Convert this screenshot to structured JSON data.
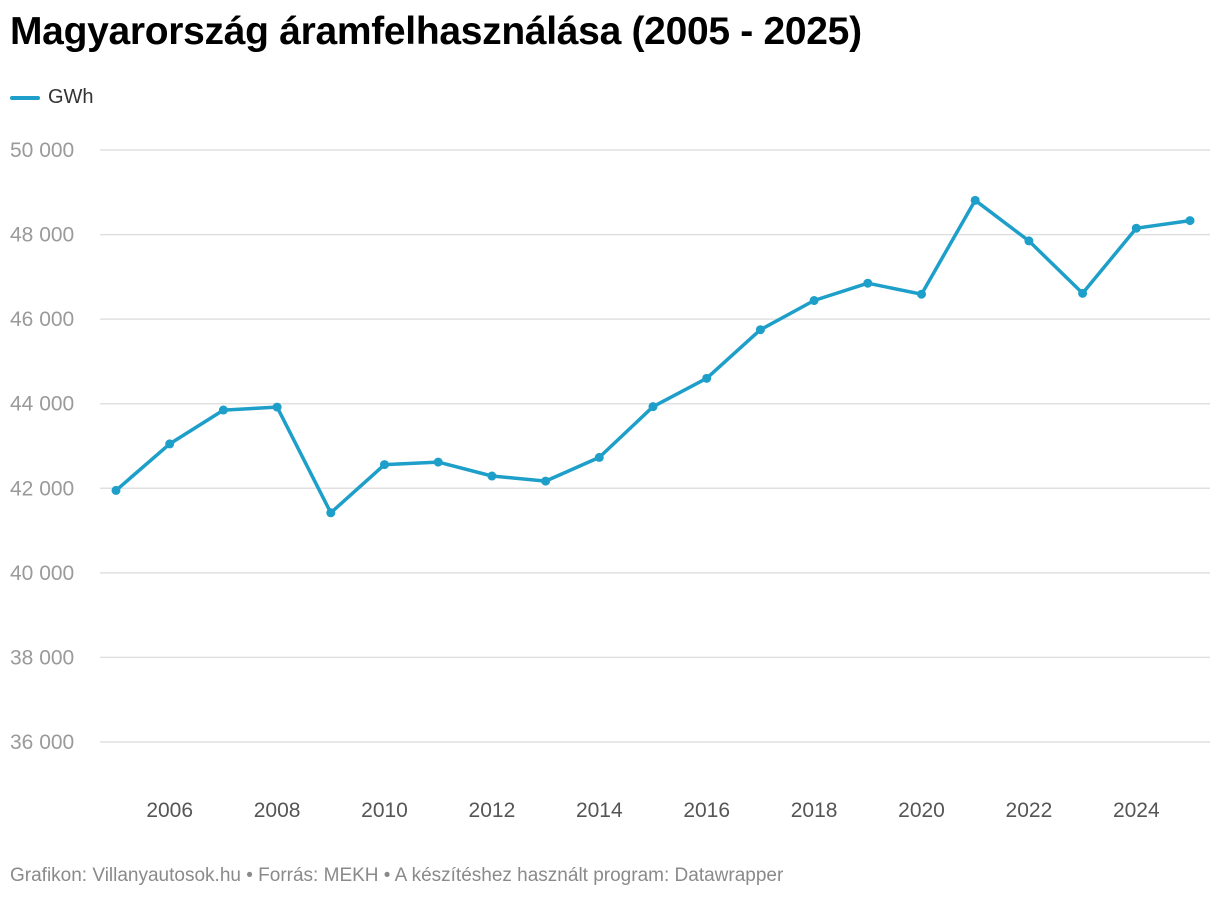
{
  "colors": {
    "line": "#1d9fca",
    "grid": "#e0e0e0",
    "text": "#000000"
  },
  "footer": {
    "text": "Grafikon: Villanyautosok.hu • Forrás: MEKH • A készítéshez használt program: Datawrapper"
  },
  "chart_data": {
    "type": "line",
    "title": "Magyarország áramfelhasználása (2005 - 2025)",
    "xlabel": "",
    "ylabel": "",
    "legend": "top-left",
    "grid": true,
    "ylim": [
      35000,
      50000
    ],
    "xlim": [
      2005,
      2025
    ],
    "y_ticks": [
      36000,
      38000,
      40000,
      42000,
      44000,
      46000,
      48000,
      50000
    ],
    "y_tick_labels": [
      "36 000",
      "38 000",
      "40 000",
      "42 000",
      "44 000",
      "46 000",
      "48 000",
      "50 000"
    ],
    "x_ticks": [
      2006,
      2008,
      2010,
      2012,
      2014,
      2016,
      2018,
      2020,
      2022,
      2024
    ],
    "x_tick_labels": [
      "2006",
      "2008",
      "2010",
      "2012",
      "2014",
      "2016",
      "2018",
      "2020",
      "2022",
      "2024"
    ],
    "x": [
      2005,
      2006,
      2007,
      2008,
      2009,
      2010,
      2011,
      2012,
      2013,
      2014,
      2015,
      2016,
      2017,
      2018,
      2019,
      2020,
      2021,
      2022,
      2023,
      2024,
      2025
    ],
    "series": [
      {
        "name": "GWh",
        "values": [
          41950,
          43050,
          43850,
          43920,
          41420,
          42560,
          42620,
          42290,
          42170,
          42730,
          43930,
          44600,
          45750,
          46440,
          46850,
          46590,
          48810,
          47850,
          46610,
          48150,
          48330
        ]
      }
    ]
  }
}
